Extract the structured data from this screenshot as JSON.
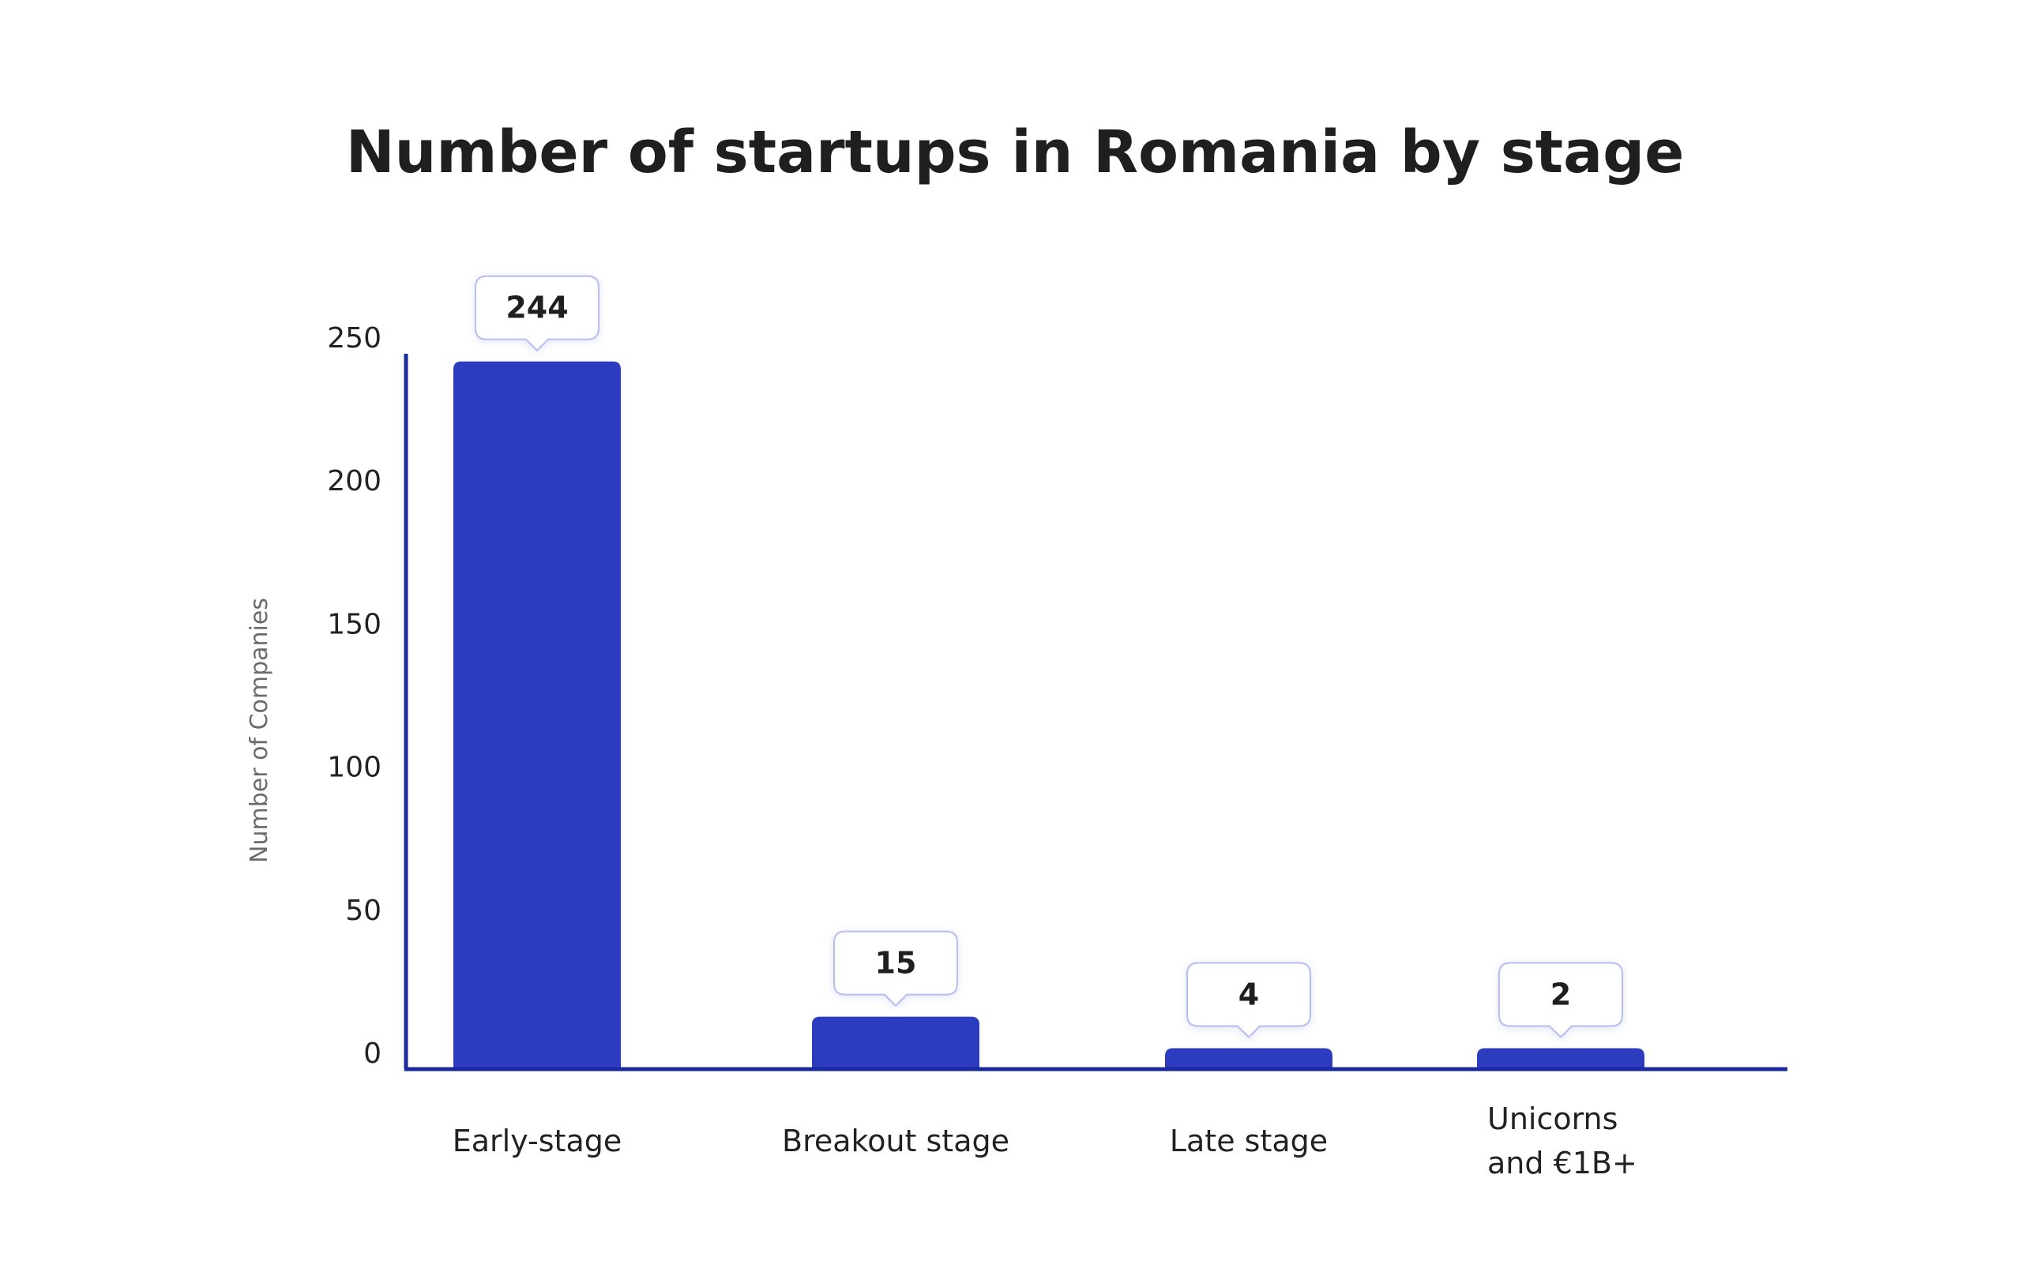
{
  "chart_data": {
    "type": "bar",
    "title": "Number of startups in Romania by stage",
    "xlabel": "",
    "ylabel": "Number of Companies",
    "categories": [
      [
        "Early-stage"
      ],
      [
        "Breakout stage"
      ],
      [
        "Late stage"
      ],
      [
        "Unicorns",
        "and €1B+"
      ]
    ],
    "values": [
      244,
      15,
      4,
      2
    ],
    "data_labels": [
      "244",
      "15",
      "4",
      "2"
    ],
    "ylim": [
      0,
      250
    ],
    "yticks": [
      0,
      50,
      100,
      150,
      200,
      250
    ],
    "grid": false,
    "legend": "none",
    "colors": {
      "bar": "#2d3cbf",
      "axis": "#1a2a9c",
      "callout_border": "#b6bdf0",
      "callout_fill": "#ffffff"
    }
  }
}
